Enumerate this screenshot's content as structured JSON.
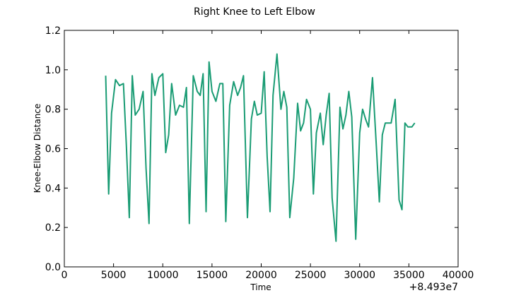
{
  "chart_data": {
    "type": "line",
    "title": "Right Knee to Left Elbow",
    "xlabel": "Time",
    "ylabel": "Knee-Elbow Distance",
    "x_offset_label": "+8.493e7",
    "xlim": [
      0,
      40000
    ],
    "ylim": [
      0.0,
      1.2
    ],
    "xticks": [
      0,
      5000,
      10000,
      15000,
      20000,
      25000,
      30000,
      35000,
      40000
    ],
    "xtick_labels": [
      "0",
      "5000",
      "10000",
      "15000",
      "20000",
      "25000",
      "30000",
      "35000",
      "40000"
    ],
    "yticks": [
      0.0,
      0.2,
      0.4,
      0.6,
      0.8,
      1.0,
      1.2
    ],
    "ytick_labels": [
      "0.0",
      "0.2",
      "0.4",
      "0.6",
      "0.8",
      "1.0",
      "1.2"
    ],
    "grid": false,
    "line_color": "#1a9c74",
    "series": [
      {
        "x": [
          4200,
          4500,
          4800,
          5200,
          5600,
          6000,
          6300,
          6600,
          6900,
          7200,
          7600,
          8000,
          8300,
          8600,
          8900,
          9200,
          9600,
          10000,
          10300,
          10600,
          10900,
          11300,
          11700,
          12100,
          12400,
          12700,
          13100,
          13500,
          13800,
          14100,
          14400,
          14700,
          15000,
          15400,
          15800,
          16100,
          16400,
          16800,
          17200,
          17600,
          17900,
          18200,
          18600,
          19000,
          19300,
          19600,
          20000,
          20300,
          20600,
          20900,
          21200,
          21600,
          22000,
          22300,
          22600,
          22900,
          23300,
          23700,
          24000,
          24300,
          24600,
          25000,
          25300,
          25600,
          26000,
          26300,
          26600,
          26900,
          27200,
          27600,
          28000,
          28300,
          28600,
          28900,
          29200,
          29600,
          30000,
          30300,
          30600,
          30900,
          31300,
          31700,
          32000,
          32300,
          32600,
          32900,
          33200,
          33600,
          34000,
          34300,
          34600,
          34900,
          35300,
          35600
        ],
        "y": [
          0.97,
          0.37,
          0.78,
          0.95,
          0.92,
          0.93,
          0.62,
          0.25,
          0.97,
          0.77,
          0.8,
          0.89,
          0.5,
          0.22,
          0.98,
          0.87,
          0.96,
          0.98,
          0.58,
          0.67,
          0.93,
          0.77,
          0.82,
          0.81,
          0.91,
          0.22,
          0.97,
          0.89,
          0.87,
          0.98,
          0.28,
          1.04,
          0.89,
          0.84,
          0.93,
          0.93,
          0.23,
          0.82,
          0.94,
          0.87,
          0.91,
          0.97,
          0.25,
          0.75,
          0.84,
          0.77,
          0.78,
          0.99,
          0.56,
          0.28,
          0.87,
          1.08,
          0.8,
          0.89,
          0.81,
          0.25,
          0.45,
          0.83,
          0.69,
          0.73,
          0.85,
          0.8,
          0.37,
          0.68,
          0.78,
          0.62,
          0.77,
          0.88,
          0.35,
          0.13,
          0.81,
          0.7,
          0.77,
          0.89,
          0.76,
          0.14,
          0.68,
          0.8,
          0.75,
          0.71,
          0.96,
          0.61,
          0.33,
          0.67,
          0.73,
          0.73,
          0.73,
          0.85,
          0.34,
          0.29,
          0.73,
          0.71,
          0.71,
          0.73
        ]
      }
    ]
  }
}
